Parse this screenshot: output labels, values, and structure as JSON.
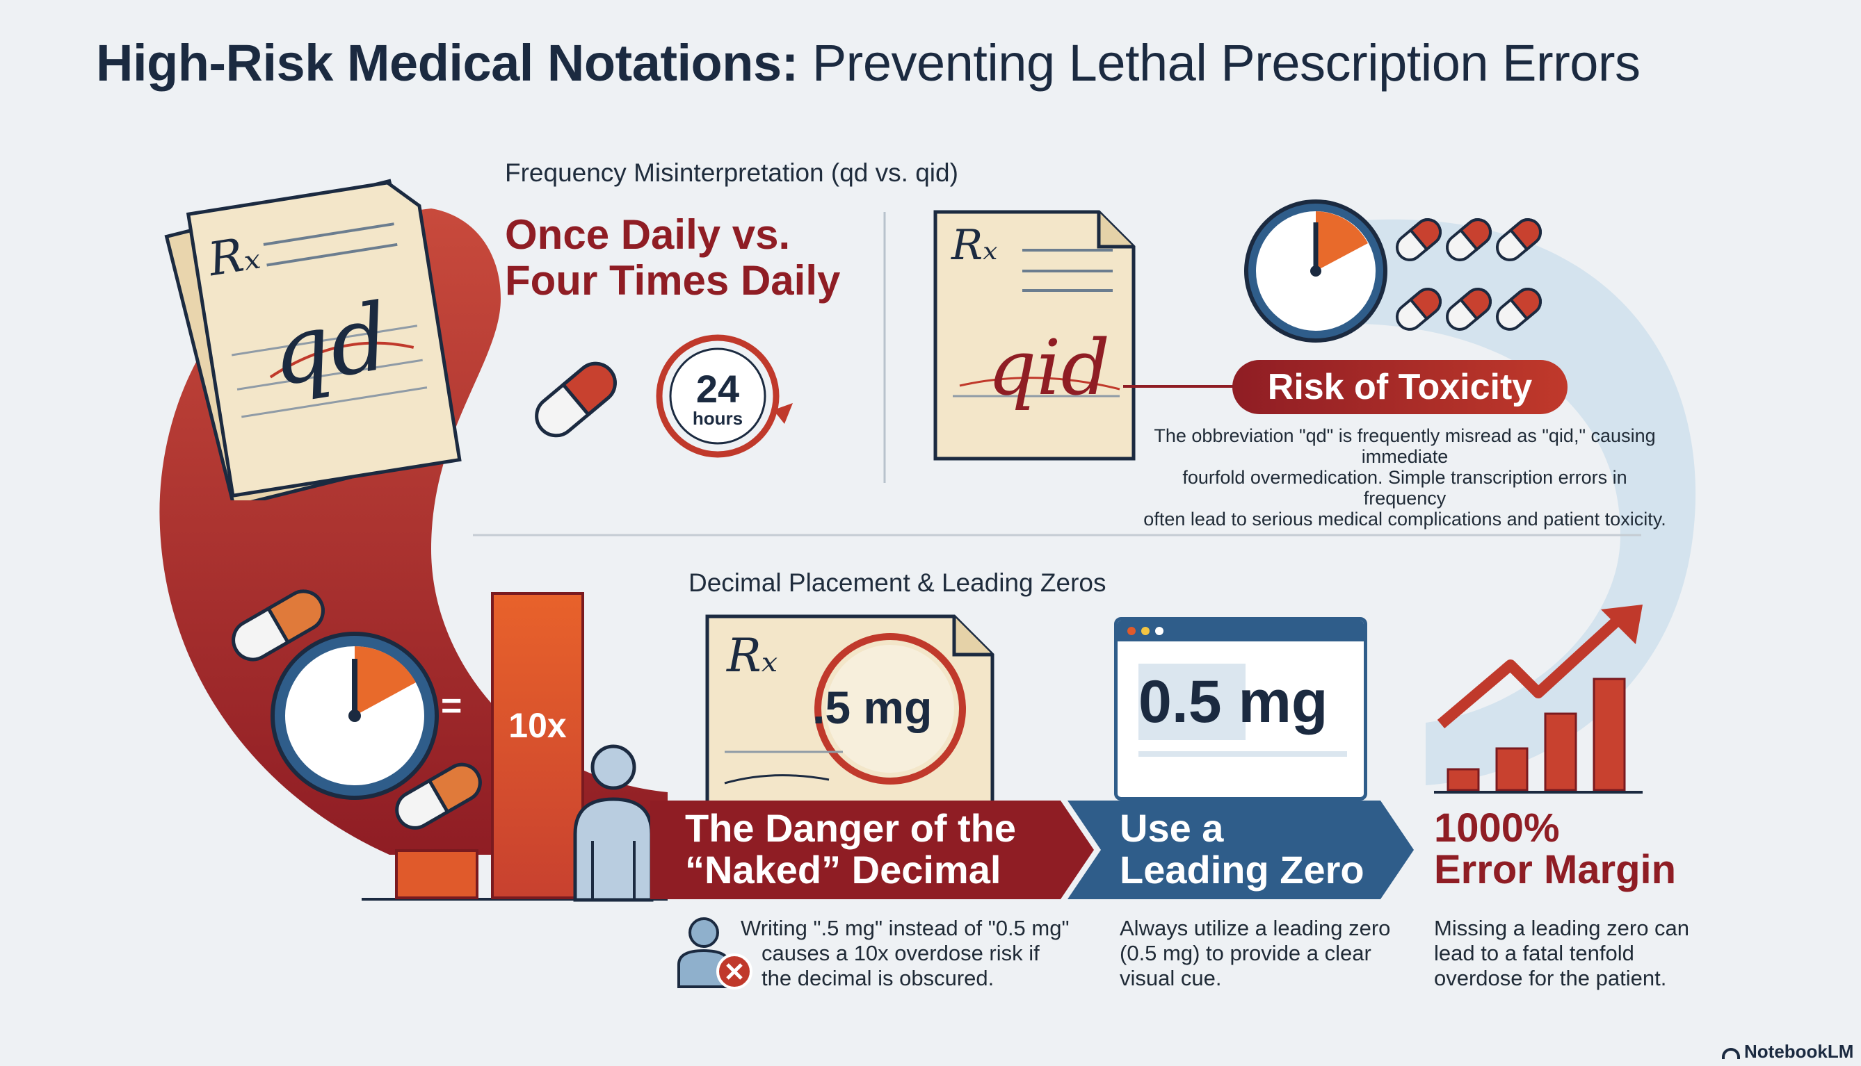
{
  "title": {
    "bold": "High-Risk Medical Notations:",
    "rest": " Preventing Lethal Prescription Errors"
  },
  "section1": {
    "heading": "Frequency Misinterpretation (qd vs. qid)",
    "headline_line1": "Once Daily vs.",
    "headline_line2": "Four Times Daily",
    "rx_symbol": "Rₓ",
    "left_note": "qd",
    "right_note": "qid",
    "clock_number": "24",
    "clock_unit": "hours",
    "toxicity_pill": "Risk of Toxicity",
    "toxicity_text": [
      "The obbreviation \"qd\" is frequently misread as \"qid,\" causing immediate",
      "fourfold overmedication. Simple transcription errors in frequency",
      "often lead to serious medical complications and patient toxicity."
    ]
  },
  "section2": {
    "heading": "Decimal Placement & Leading Zeros",
    "equals": "=",
    "bar_label": "10x",
    "naked_dose": ".5 mg",
    "leading_zero_dose": "0.5 mg",
    "banner_danger_line1": "The Danger of the",
    "banner_danger_line2": "“Naked” Decimal",
    "banner_zero_line1": "Use a",
    "banner_zero_line2": "Leading Zero",
    "margin_line1": "1000%",
    "margin_line2": "Error Margin",
    "danger_desc": [
      "Writing \".5 mg\" instead of \"0.5 mg\"",
      "causes a 10x overdose risk if",
      "the decimal is obscured."
    ],
    "zero_desc": [
      "Always utilize a leading zero",
      "(0.5 mg) to provide a clear",
      "visual cue."
    ],
    "margin_desc": [
      "Missing a leading zero can",
      "lead to a fatal tenfold",
      "overdose for the patient."
    ]
  },
  "footer": {
    "brand": "NotebookLM"
  },
  "colors": {
    "dark_red": "#8f1d24",
    "red": "#c0392b",
    "orange": "#e05a2b",
    "blue": "#2f5d8a",
    "navy": "#1b2a40",
    "paper": "#f3e6c9"
  }
}
